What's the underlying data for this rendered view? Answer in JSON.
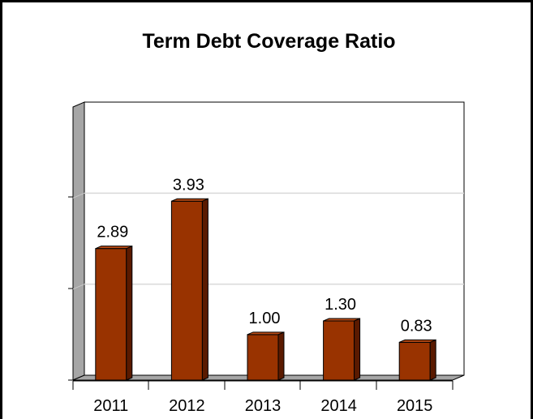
{
  "chart_data": {
    "type": "bar",
    "title": "Term Debt Coverage Ratio",
    "categories": [
      "2011",
      "2012",
      "2013",
      "2014",
      "2015"
    ],
    "values": [
      2.89,
      3.93,
      1.0,
      1.3,
      0.83
    ],
    "data_labels": [
      "2.89",
      "3.93",
      "1.00",
      "1.30",
      "0.83"
    ],
    "xlabel": "",
    "ylabel": "",
    "ylim": [
      0,
      6
    ],
    "grid": true,
    "legend": "none",
    "bar_color": "#993300"
  }
}
